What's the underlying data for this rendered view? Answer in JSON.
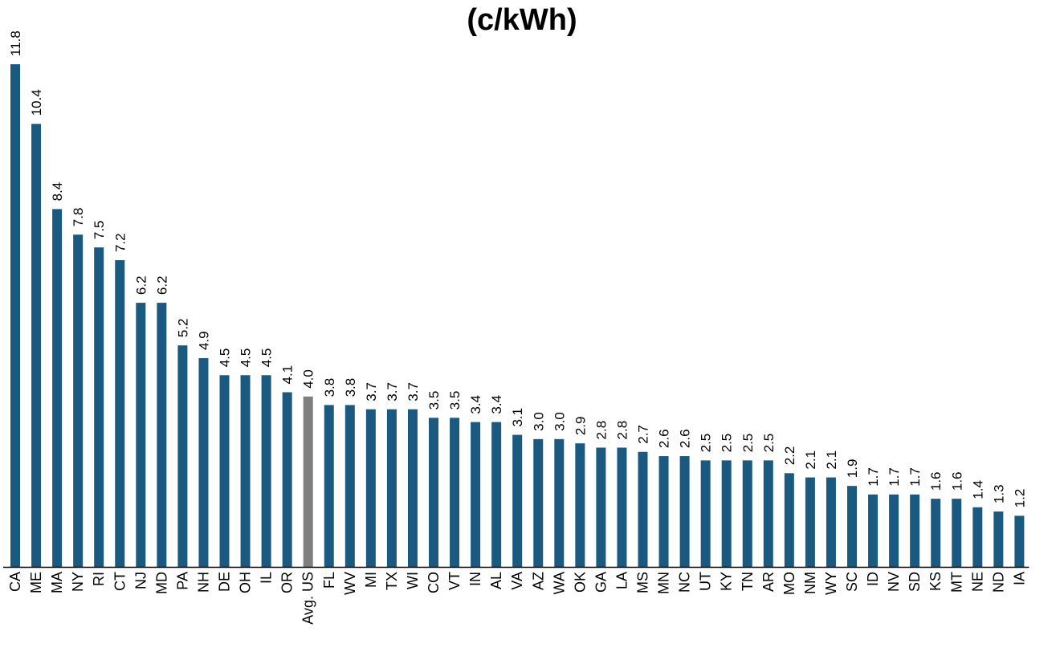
{
  "chart_data": {
    "type": "bar",
    "title": "(c/kWh)",
    "xlabel": "",
    "ylabel": "",
    "ylim": [
      0,
      11.8
    ],
    "grid": false,
    "categories": [
      "CA",
      "ME",
      "MA",
      "NY",
      "RI",
      "CT",
      "NJ",
      "MD",
      "PA",
      "NH",
      "DE",
      "OH",
      "IL",
      "OR",
      "Avg. US",
      "FL",
      "WV",
      "MI",
      "TX",
      "WI",
      "CO",
      "VT",
      "IN",
      "AL",
      "VA",
      "AZ",
      "WA",
      "OK",
      "GA",
      "LA",
      "MS",
      "MN",
      "NC",
      "UT",
      "KY",
      "TN",
      "AR",
      "MO",
      "NM",
      "WY",
      "SC",
      "ID",
      "NV",
      "SD",
      "KS",
      "MT",
      "NE",
      "ND",
      "IA"
    ],
    "values": [
      11.8,
      10.4,
      8.4,
      7.8,
      7.5,
      7.2,
      6.2,
      6.2,
      5.2,
      4.9,
      4.5,
      4.5,
      4.5,
      4.1,
      4.0,
      3.8,
      3.8,
      3.7,
      3.7,
      3.7,
      3.5,
      3.5,
      3.4,
      3.4,
      3.1,
      3.0,
      3.0,
      2.9,
      2.8,
      2.8,
      2.7,
      2.6,
      2.6,
      2.5,
      2.5,
      2.5,
      2.5,
      2.2,
      2.1,
      2.1,
      1.9,
      1.7,
      1.7,
      1.7,
      1.6,
      1.6,
      1.4,
      1.3,
      1.2
    ],
    "value_labels": [
      "11.8",
      "10.4",
      "8.4",
      "7.8",
      "7.5",
      "7.2",
      "6.2",
      "6.2",
      "5.2",
      "4.9",
      "4.5",
      "4.5",
      "4.5",
      "4.1",
      "4.0",
      "3.8",
      "3.8",
      "3.7",
      "3.7",
      "3.7",
      "3.5",
      "3.5",
      "3.4",
      "3.4",
      "3.1",
      "3.0",
      "3.0",
      "2.9",
      "2.8",
      "2.8",
      "2.7",
      "2.6",
      "2.6",
      "2.5",
      "2.5",
      "2.5",
      "2.5",
      "2.2",
      "2.1",
      "2.1",
      "1.9",
      "1.7",
      "1.7",
      "1.7",
      "1.6",
      "1.6",
      "1.4",
      "1.3",
      "1.2"
    ],
    "highlight_category": "Avg. US",
    "colors": {
      "bar": "#1b5a80",
      "highlight": "#7f7f7f",
      "axis": "#000000"
    }
  }
}
